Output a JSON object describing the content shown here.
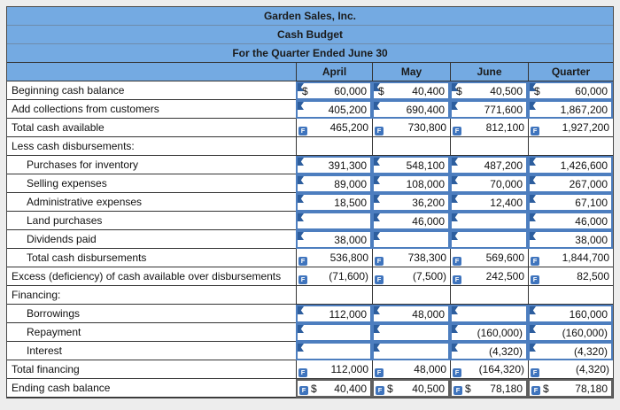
{
  "title_rows": [
    "Garden Sales, Inc.",
    "Cash Budget",
    "For the Quarter Ended June 30"
  ],
  "columns": [
    "April",
    "May",
    "June",
    "Quarter"
  ],
  "formula_icon_letter": "F",
  "colors": {
    "header_fill": "#74aae2",
    "input_cell_border": "#4d7ebf",
    "formula_badge": "#3f74bd",
    "answer_flag": "#2d5e9e"
  },
  "rows": [
    {
      "label": "Beginning cash balance",
      "indent": false,
      "cells": [
        {
          "type": "input",
          "dollar": "$",
          "value": "60,000"
        },
        {
          "type": "input",
          "dollar": "$",
          "value": "40,400"
        },
        {
          "type": "input",
          "dollar": "$",
          "value": "40,500"
        },
        {
          "type": "input",
          "dollar": "$",
          "value": "60,000"
        }
      ]
    },
    {
      "label": "Add collections from customers",
      "indent": false,
      "cells": [
        {
          "type": "input",
          "value": "405,200"
        },
        {
          "type": "input",
          "value": "690,400"
        },
        {
          "type": "input",
          "value": "771,600"
        },
        {
          "type": "input",
          "value": "1,867,200"
        }
      ]
    },
    {
      "label": "Total cash available",
      "indent": false,
      "cells": [
        {
          "type": "calc",
          "value": "465,200"
        },
        {
          "type": "calc",
          "value": "730,800"
        },
        {
          "type": "calc",
          "value": "812,100"
        },
        {
          "type": "calc",
          "value": "1,927,200"
        }
      ]
    },
    {
      "label": "Less cash disbursements:",
      "indent": false,
      "cells": [
        {
          "type": "blank",
          "value": ""
        },
        {
          "type": "blank",
          "value": ""
        },
        {
          "type": "blank",
          "value": ""
        },
        {
          "type": "blank",
          "value": ""
        }
      ]
    },
    {
      "label": "Purchases for inventory",
      "indent": true,
      "cells": [
        {
          "type": "input",
          "value": "391,300"
        },
        {
          "type": "input",
          "value": "548,100"
        },
        {
          "type": "input",
          "value": "487,200"
        },
        {
          "type": "input",
          "value": "1,426,600"
        }
      ]
    },
    {
      "label": "Selling expenses",
      "indent": true,
      "cells": [
        {
          "type": "input",
          "value": "89,000"
        },
        {
          "type": "input",
          "value": "108,000"
        },
        {
          "type": "input",
          "value": "70,000"
        },
        {
          "type": "input",
          "value": "267,000"
        }
      ]
    },
    {
      "label": "Administrative expenses",
      "indent": true,
      "cells": [
        {
          "type": "input",
          "value": "18,500"
        },
        {
          "type": "input",
          "value": "36,200"
        },
        {
          "type": "input",
          "value": "12,400"
        },
        {
          "type": "input",
          "value": "67,100"
        }
      ]
    },
    {
      "label": "Land purchases",
      "indent": true,
      "cells": [
        {
          "type": "input",
          "value": ""
        },
        {
          "type": "input",
          "value": "46,000"
        },
        {
          "type": "input",
          "value": ""
        },
        {
          "type": "input",
          "value": "46,000"
        }
      ]
    },
    {
      "label": "Dividends paid",
      "indent": true,
      "cells": [
        {
          "type": "input",
          "value": "38,000"
        },
        {
          "type": "input",
          "value": ""
        },
        {
          "type": "input",
          "value": ""
        },
        {
          "type": "input",
          "value": "38,000"
        }
      ]
    },
    {
      "label": "Total cash disbursements",
      "indent": true,
      "cells": [
        {
          "type": "calc",
          "value": "536,800"
        },
        {
          "type": "calc",
          "value": "738,300"
        },
        {
          "type": "calc",
          "value": "569,600"
        },
        {
          "type": "calc",
          "value": "1,844,700"
        }
      ]
    },
    {
      "label": "Excess (deficiency) of cash available over disbursements",
      "indent": false,
      "cells": [
        {
          "type": "calc",
          "value": "(71,600)"
        },
        {
          "type": "calc",
          "value": "(7,500)"
        },
        {
          "type": "calc",
          "value": "242,500"
        },
        {
          "type": "calc",
          "value": "82,500"
        }
      ]
    },
    {
      "label": "Financing:",
      "indent": false,
      "cells": [
        {
          "type": "blank",
          "value": ""
        },
        {
          "type": "blank",
          "value": ""
        },
        {
          "type": "blank",
          "value": ""
        },
        {
          "type": "blank",
          "value": ""
        }
      ]
    },
    {
      "label": "Borrowings",
      "indent": true,
      "cells": [
        {
          "type": "input",
          "value": "112,000"
        },
        {
          "type": "input",
          "value": "48,000"
        },
        {
          "type": "input",
          "value": ""
        },
        {
          "type": "input",
          "value": "160,000"
        }
      ]
    },
    {
      "label": "Repayment",
      "indent": true,
      "cells": [
        {
          "type": "input",
          "value": ""
        },
        {
          "type": "input",
          "value": ""
        },
        {
          "type": "input",
          "value": "(160,000)"
        },
        {
          "type": "input",
          "value": "(160,000)"
        }
      ]
    },
    {
      "label": "Interest",
      "indent": true,
      "cells": [
        {
          "type": "input",
          "value": ""
        },
        {
          "type": "input",
          "value": ""
        },
        {
          "type": "input",
          "value": "(4,320)"
        },
        {
          "type": "input",
          "value": "(4,320)"
        }
      ]
    },
    {
      "label": "Total financing",
      "indent": false,
      "cells": [
        {
          "type": "calc",
          "value": "112,000"
        },
        {
          "type": "calc",
          "value": "48,000"
        },
        {
          "type": "calc",
          "value": "(164,320)"
        },
        {
          "type": "calc",
          "value": "(4,320)"
        }
      ]
    },
    {
      "label": "Ending cash balance",
      "indent": false,
      "cells": [
        {
          "type": "ending",
          "dollar": "$",
          "value": "40,400"
        },
        {
          "type": "ending",
          "dollar": "$",
          "value": "40,500"
        },
        {
          "type": "ending",
          "dollar": "$",
          "value": "78,180"
        },
        {
          "type": "ending",
          "dollar": "$",
          "value": "78,180"
        }
      ]
    }
  ]
}
